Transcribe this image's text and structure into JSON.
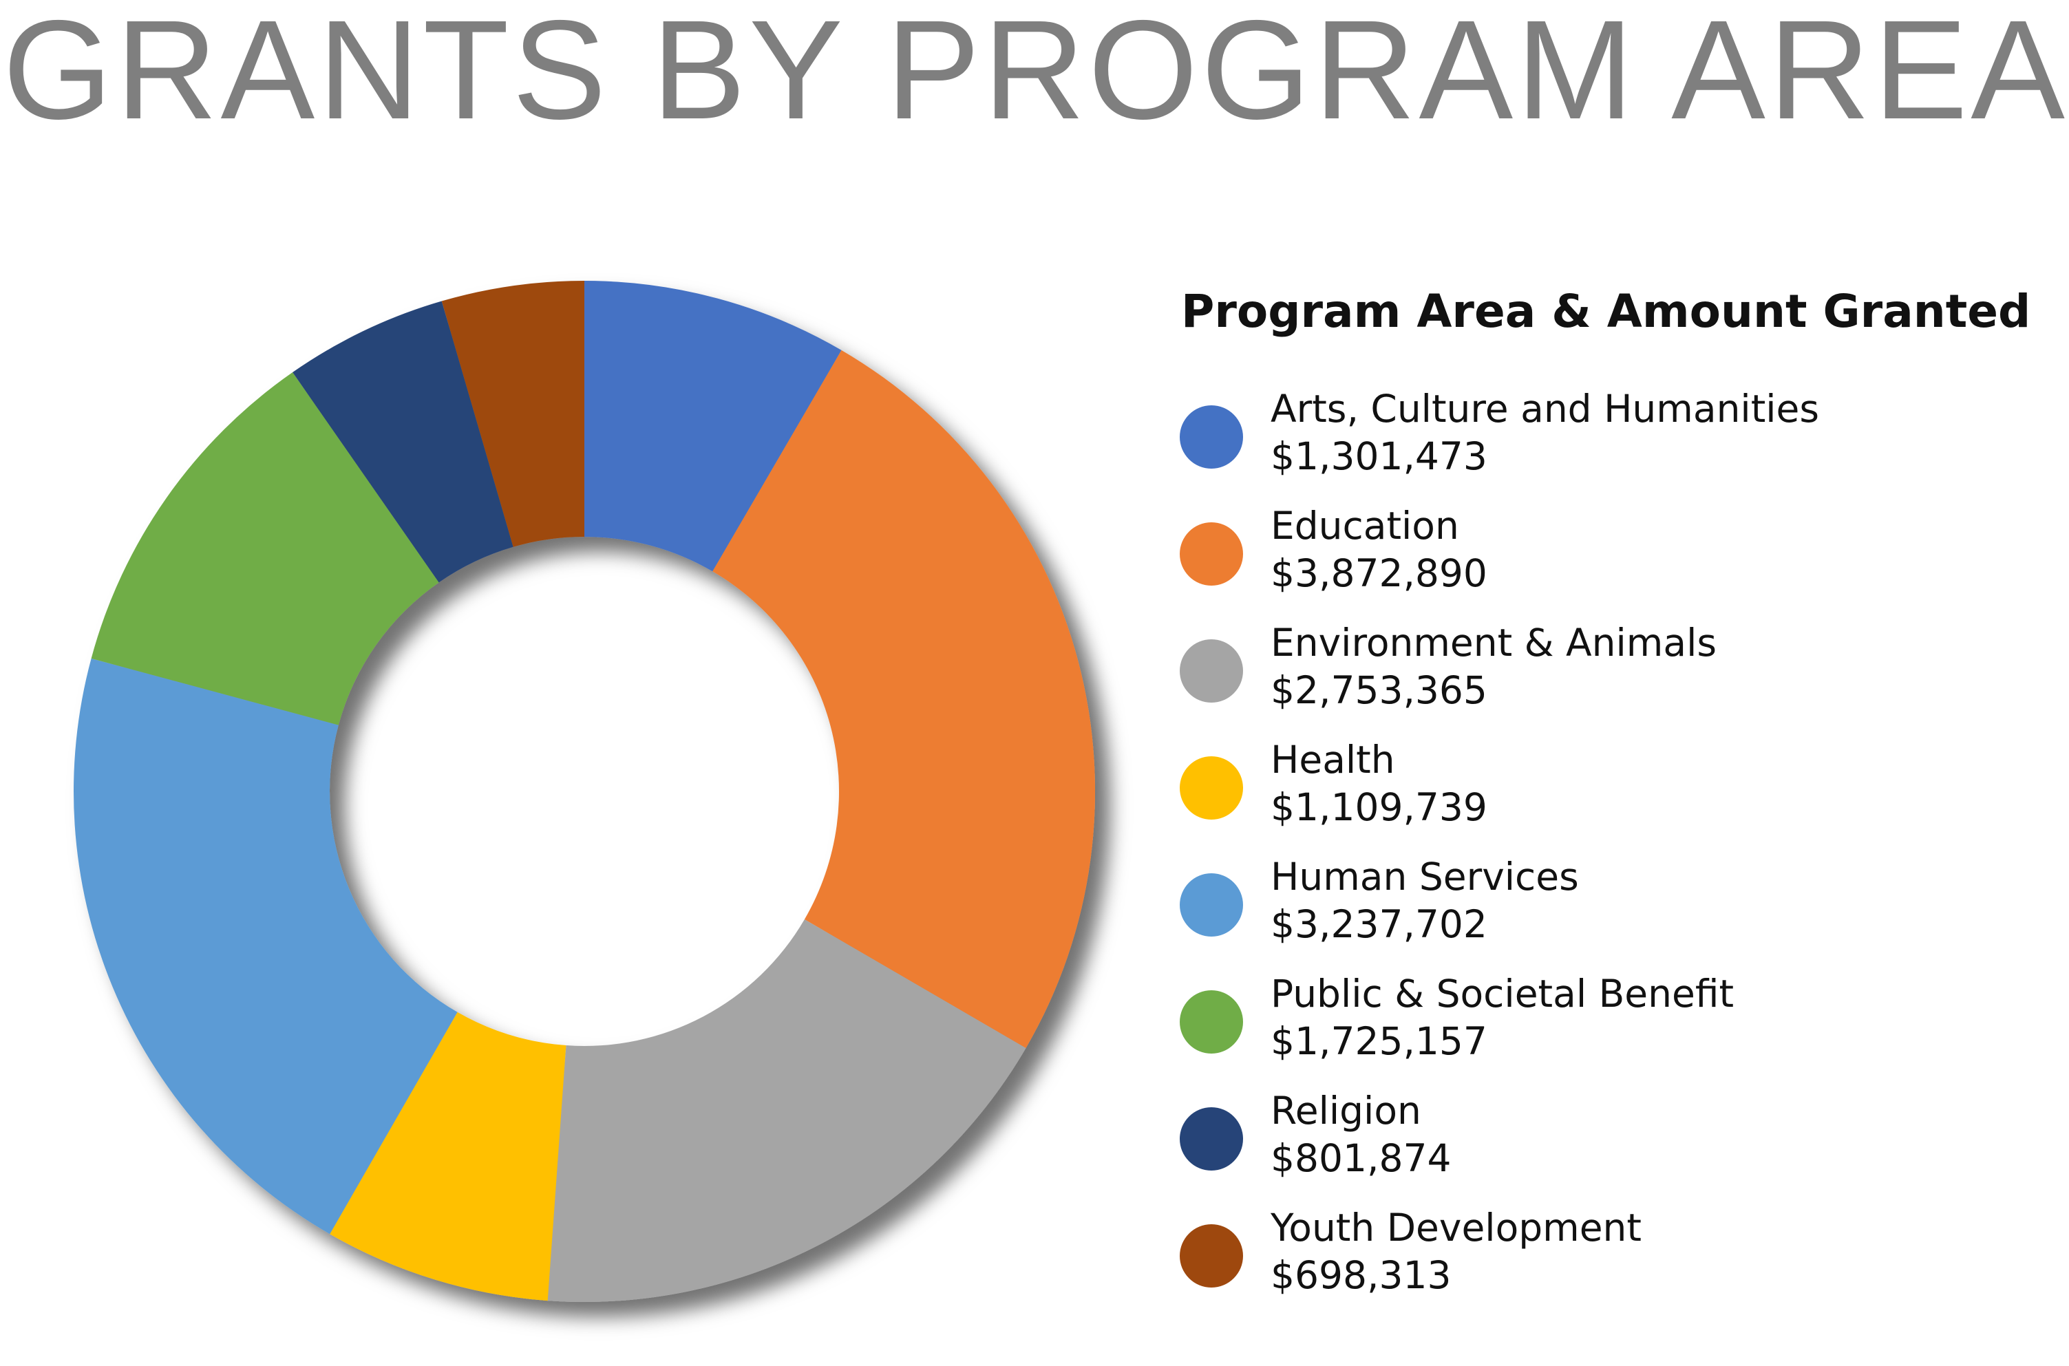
{
  "chart_data": {
    "type": "donut",
    "title": "GRANTS BY PROGRAM AREA",
    "legend_title": "Program Area & Amount Granted",
    "categories": [
      "Arts, Culture and Humanities",
      "Education",
      "Environment & Animals",
      "Health",
      "Human Services",
      "Public & Societal Benefit",
      "Religion",
      "Youth Development"
    ],
    "values": [
      1301473,
      3872890,
      2753365,
      1109739,
      3237702,
      1725157,
      801874,
      698313
    ],
    "value_labels": [
      "$1,301,473",
      "$3,872,890",
      "$2,753,365",
      "$1,109,739",
      "$3,237,702",
      "$1,725,157",
      "$801,874",
      "$698,313"
    ],
    "colors": [
      "#4472c4",
      "#ed7d31",
      "#a5a5a5",
      "#ffc000",
      "#5b9bd5",
      "#70ad47",
      "#264478",
      "#9e480e"
    ],
    "legend": "right"
  }
}
